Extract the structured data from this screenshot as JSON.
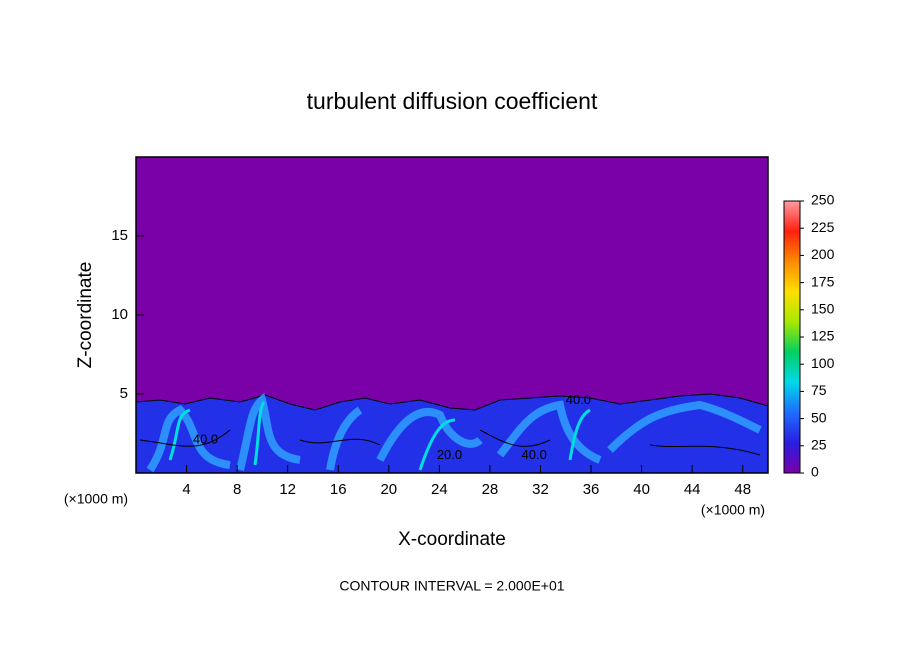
{
  "chart_data": {
    "type": "contour",
    "title": "turbulent diffusion coefficient",
    "xlabel": "X-coordinate",
    "ylabel": "Z-coordinate",
    "xunit": "(×1000 m)",
    "yunit": "(×1000 m)",
    "footer": "CONTOUR INTERVAL = 2.000E+01",
    "xlim": [
      0,
      50
    ],
    "xticks": [
      4,
      8,
      12,
      16,
      20,
      24,
      28,
      32,
      36,
      40,
      44,
      48
    ],
    "ylim": [
      0,
      20
    ],
    "yticks": [
      5,
      10,
      15
    ],
    "contour_labels": [
      {
        "value": 40,
        "label": "40.0",
        "x": 5.5,
        "y": 2.1
      },
      {
        "value": 20,
        "label": "20.0",
        "x": 24.8,
        "y": 1.1
      },
      {
        "value": 40,
        "label": "40.0",
        "x": 35,
        "y": 4.6
      },
      {
        "value": 40,
        "label": "40.0",
        "x": 31.5,
        "y": 1.1
      }
    ],
    "colorbar": {
      "lim": [
        0,
        250
      ],
      "ticks": [
        0,
        25,
        50,
        75,
        100,
        125,
        150,
        175,
        200,
        225,
        250
      ],
      "colors": [
        "#7a00a8",
        "#2a1ee0",
        "#1e6cff",
        "#00d8e8",
        "#00d060",
        "#a8e800",
        "#ffe000",
        "#ff8a00",
        "#ff2010",
        "#ff9aa0"
      ]
    }
  }
}
